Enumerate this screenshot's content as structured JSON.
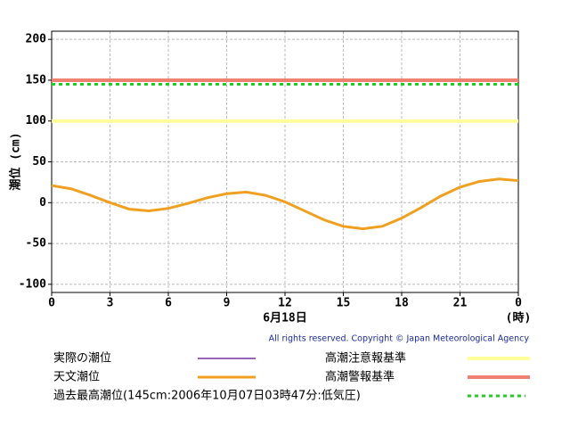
{
  "chart_data": {
    "type": "line",
    "y_label": "潮位 (cm)",
    "x_label": "6月18日",
    "x_unit": "(時)",
    "copyright": "All rights reserved. Copyright © Japan Meteorological Agency",
    "x": [
      0,
      1,
      2,
      3,
      4,
      5,
      6,
      7,
      8,
      9,
      10,
      11,
      12,
      13,
      14,
      15,
      16,
      17,
      18,
      19,
      20,
      21,
      22,
      23,
      24
    ],
    "series": [
      {
        "name": "実際の潮位",
        "color": "#7030a0",
        "values": [
          null,
          null,
          null,
          null,
          null,
          null,
          null,
          null,
          null,
          null,
          null,
          null,
          null,
          null,
          null,
          null,
          null,
          null,
          null,
          null,
          null,
          null,
          null,
          null,
          null
        ]
      },
      {
        "name": "天文潮位",
        "color": "#f0a020",
        "values": [
          21,
          17,
          9,
          0,
          -8,
          -10,
          -7,
          -1,
          6,
          11,
          13,
          9,
          1,
          -10,
          -21,
          -29,
          -32,
          -29,
          -19,
          -6,
          8,
          19,
          26,
          29,
          27
        ]
      }
    ],
    "hlines": [
      {
        "name": "高潮注意報基準",
        "value": 100,
        "color": "#ffff99",
        "dashed": false
      },
      {
        "name": "高潮警報基準",
        "value": 150,
        "color": "#f08070",
        "dashed": false
      },
      {
        "name": "過去最高潮位(145cm:2006年10月07日03時47分:低気圧)",
        "value": 145,
        "color": "#22cc22",
        "dashed": true
      }
    ],
    "xlim": [
      0,
      24
    ],
    "xticks": [
      0,
      3,
      6,
      9,
      12,
      15,
      18,
      21,
      {
        "value": 24,
        "label": "0"
      }
    ],
    "ylim": [
      -110,
      210
    ],
    "yticks": [
      -100,
      -50,
      0,
      50,
      100,
      150,
      200
    ],
    "grid": true
  }
}
